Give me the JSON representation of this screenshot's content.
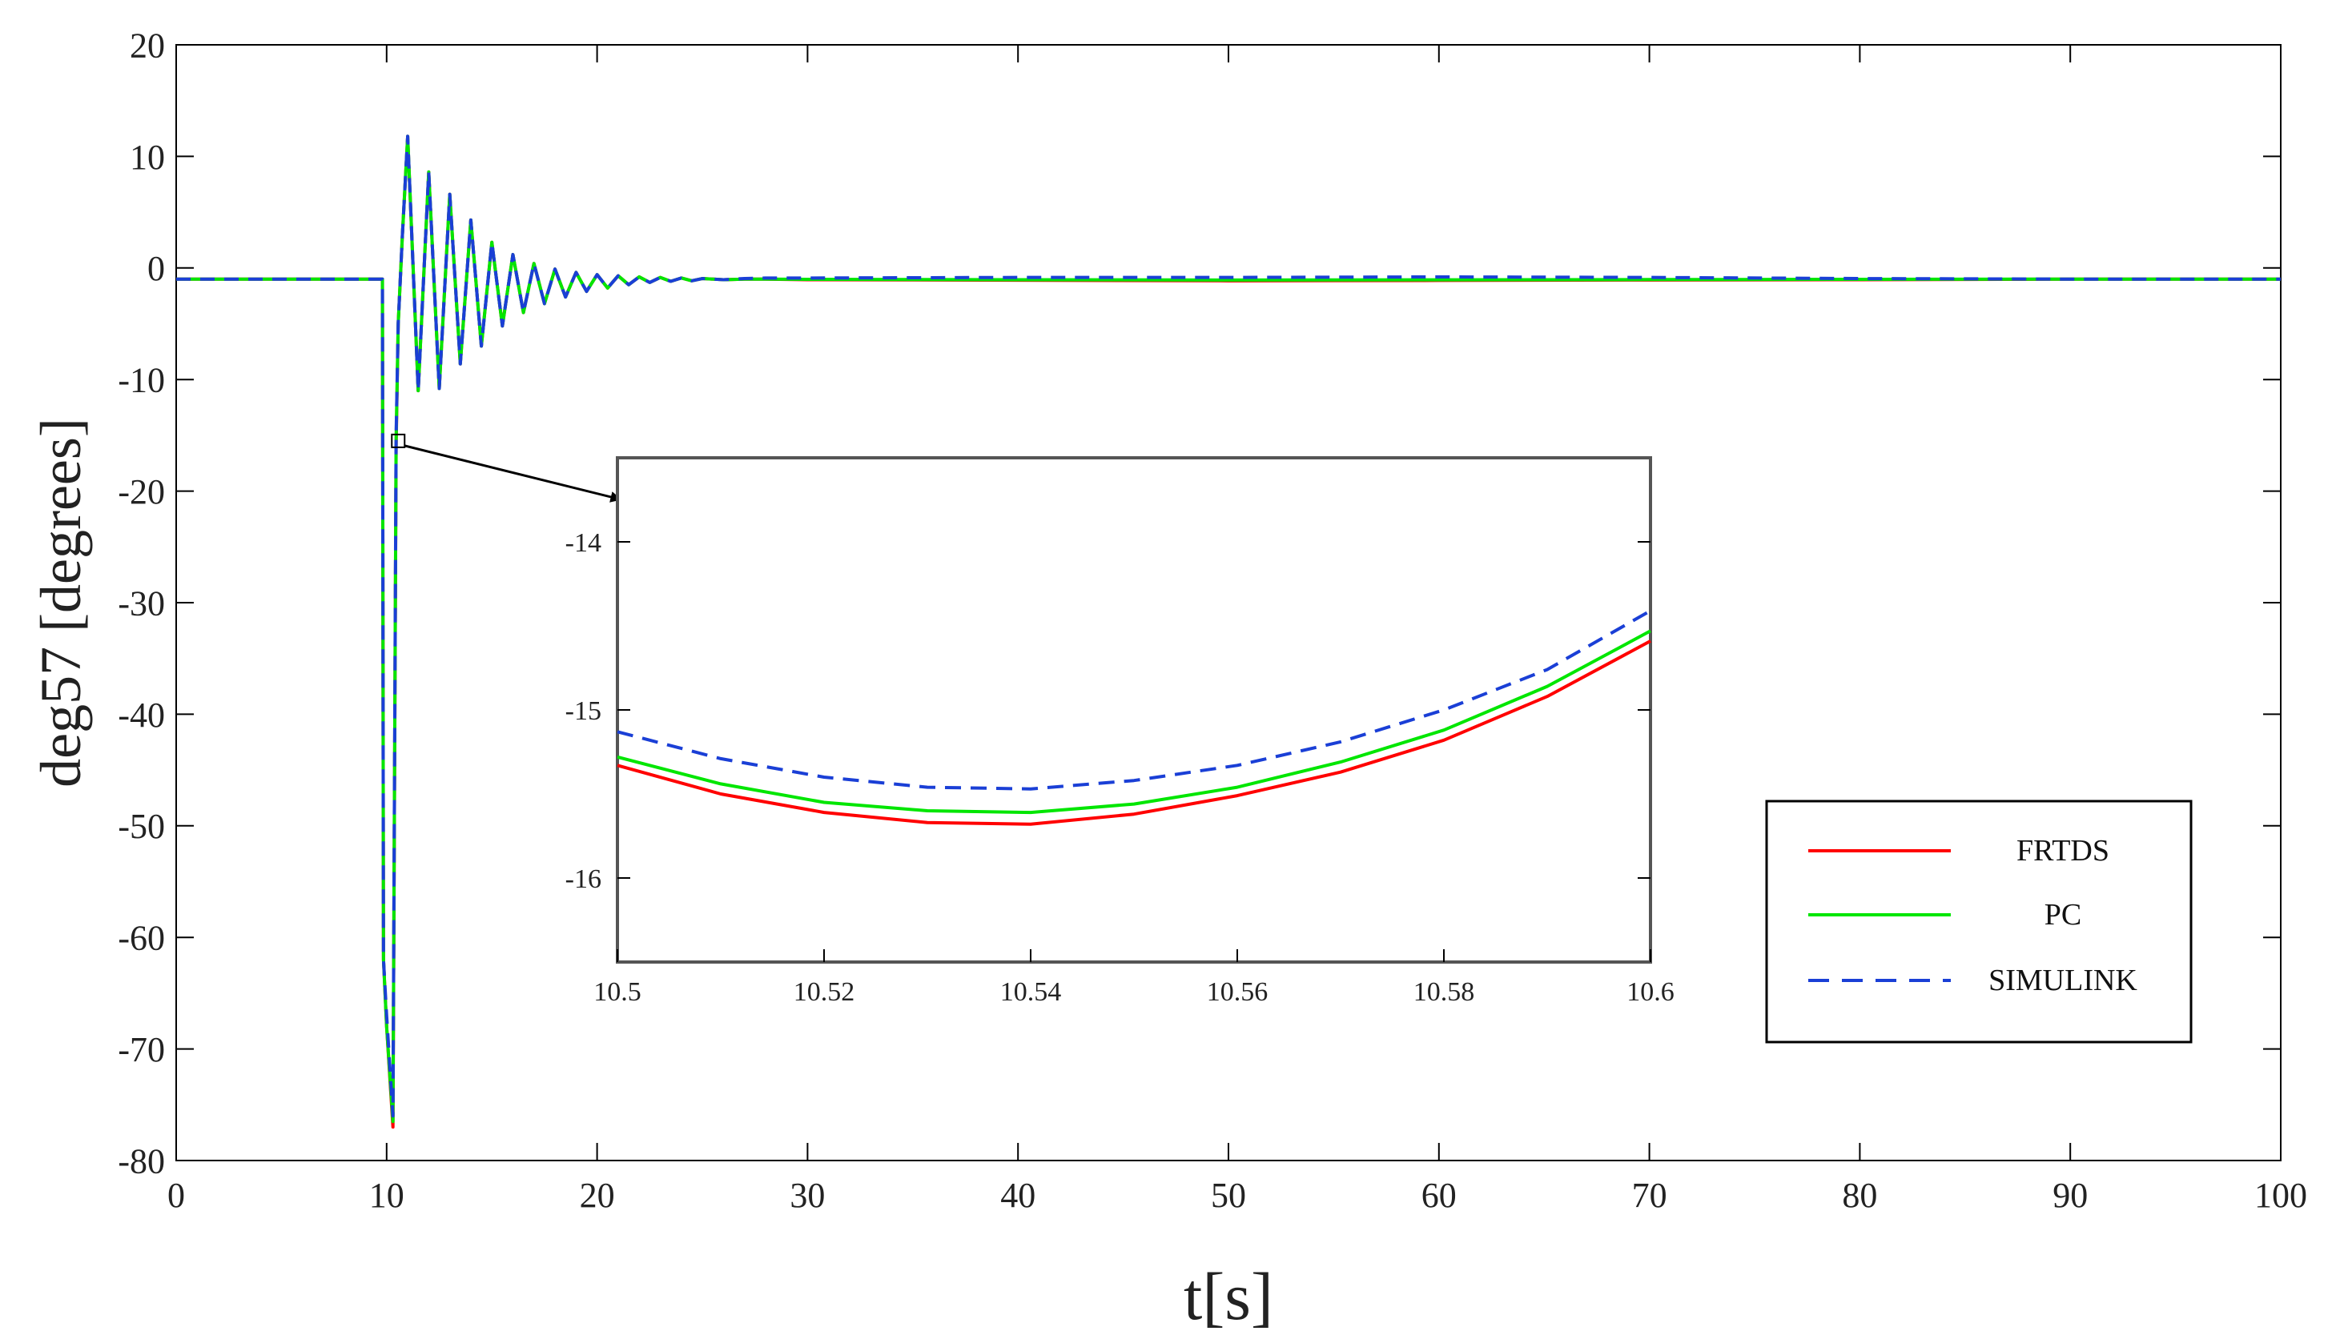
{
  "chart_data": [
    {
      "id": "main",
      "type": "line",
      "title": "",
      "xlabel": "t[s]",
      "ylabel": "deg57 [degrees]",
      "xlim": [
        0,
        100
      ],
      "ylim": [
        -80,
        20
      ],
      "xticks": [
        0,
        10,
        20,
        30,
        40,
        50,
        60,
        70,
        80,
        90,
        100
      ],
      "yticks": [
        20,
        10,
        0,
        -10,
        -20,
        -30,
        -40,
        -50,
        -60,
        -70,
        -80
      ],
      "grid": false,
      "series": [
        {
          "name": "FRTDS",
          "color": "#ff0000",
          "style": "solid",
          "x": [
            0,
            9.8,
            9.85,
            10.0,
            10.3,
            10.45,
            10.55,
            10.75,
            11.0,
            11.5,
            12.0,
            12.5,
            13.0,
            13.5,
            14.0,
            14.5,
            15.0,
            15.5,
            16.0,
            16.5,
            17.0,
            17.5,
            18.0,
            18.5,
            19.0,
            19.5,
            20.0,
            20.5,
            21.0,
            21.5,
            22.0,
            22.5,
            23.0,
            23.5,
            24.0,
            24.5,
            25.0,
            26.0,
            27.0,
            28.0,
            30.0,
            40.0,
            50.0,
            60.0,
            70.0,
            80.0,
            90.0,
            100.0
          ],
          "y": [
            -1,
            -1,
            -62,
            -68,
            -77,
            -16,
            -5,
            3,
            11.8,
            -11,
            8.6,
            -10.8,
            6.6,
            -8.6,
            4.3,
            -7.0,
            2.3,
            -5.2,
            1.2,
            -4.0,
            0.4,
            -3.2,
            -0.1,
            -2.6,
            -0.4,
            -2.1,
            -0.6,
            -1.8,
            -0.7,
            -1.5,
            -0.8,
            -1.3,
            -0.85,
            -1.2,
            -0.9,
            -1.15,
            -0.95,
            -1.05,
            -1.0,
            -1.0,
            -1.05,
            -1.1,
            -1.15,
            -1.12,
            -1.08,
            -1.05,
            -1.0,
            -1.0
          ]
        },
        {
          "name": "PC",
          "color": "#00e600",
          "style": "solid",
          "x": [
            0,
            9.8,
            9.85,
            10.0,
            10.3,
            10.45,
            10.55,
            10.75,
            11.0,
            11.5,
            12.0,
            12.5,
            13.0,
            13.5,
            14.0,
            14.5,
            15.0,
            15.5,
            16.0,
            16.5,
            17.0,
            17.5,
            18.0,
            18.5,
            19.0,
            19.5,
            20.0,
            20.5,
            21.0,
            21.5,
            22.0,
            22.5,
            23.0,
            23.5,
            24.0,
            24.5,
            25.0,
            26.0,
            27.0,
            28.0,
            30.0,
            40.0,
            50.0,
            60.0,
            70.0,
            80.0,
            90.0,
            100.0
          ],
          "y": [
            -1,
            -1,
            -62,
            -68,
            -76.5,
            -15.5,
            -5,
            3,
            11.8,
            -11,
            8.6,
            -10.8,
            6.6,
            -8.6,
            4.3,
            -7.0,
            2.3,
            -5.2,
            1.2,
            -4.0,
            0.4,
            -3.2,
            -0.1,
            -2.6,
            -0.4,
            -2.1,
            -0.6,
            -1.8,
            -0.7,
            -1.5,
            -0.8,
            -1.3,
            -0.85,
            -1.2,
            -0.9,
            -1.15,
            -0.95,
            -1.05,
            -1.0,
            -1.0,
            -1.02,
            -1.05,
            -1.08,
            -1.06,
            -1.04,
            -1.02,
            -1.0,
            -1.0
          ]
        },
        {
          "name": "SIMULINK",
          "color": "#1a3fd6",
          "style": "dashed",
          "x": [
            0,
            9.8,
            9.85,
            10.0,
            10.3,
            10.45,
            10.55,
            10.75,
            11.0,
            11.5,
            12.0,
            12.5,
            13.0,
            13.5,
            14.0,
            14.5,
            15.0,
            15.5,
            16.0,
            16.5,
            17.0,
            17.5,
            18.0,
            18.5,
            19.0,
            19.5,
            20.0,
            20.5,
            21.0,
            21.5,
            22.0,
            22.5,
            23.0,
            23.5,
            24.0,
            24.5,
            25.0,
            26.0,
            27.0,
            28.0,
            30.0,
            40.0,
            50.0,
            60.0,
            70.0,
            80.0,
            90.0,
            100.0
          ],
          "y": [
            -1,
            -1,
            -62,
            -67,
            -76,
            -15,
            -5,
            3,
            11.8,
            -11,
            8.6,
            -10.8,
            6.6,
            -8.6,
            4.3,
            -7.0,
            2.3,
            -5.2,
            1.2,
            -4.0,
            0.4,
            -3.2,
            -0.1,
            -2.6,
            -0.4,
            -2.1,
            -0.6,
            -1.8,
            -0.7,
            -1.5,
            -0.8,
            -1.3,
            -0.85,
            -1.2,
            -0.9,
            -1.15,
            -0.95,
            -1.05,
            -0.95,
            -0.9,
            -0.9,
            -0.85,
            -0.85,
            -0.8,
            -0.85,
            -0.95,
            -1.0,
            -1.0
          ]
        }
      ]
    },
    {
      "id": "inset",
      "type": "line",
      "title": "",
      "xlabel": "",
      "ylabel": "",
      "xlim": [
        10.5,
        10.6
      ],
      "ylim": [
        -16.5,
        -13.5
      ],
      "xticks": [
        10.5,
        10.52,
        10.54,
        10.56,
        10.58,
        10.6
      ],
      "xtick_labels": [
        "10.5",
        "10.52",
        "10.54",
        "10.56",
        "10.58",
        "10.6"
      ],
      "yticks": [
        -14,
        -15,
        -16
      ],
      "grid": false,
      "series": [
        {
          "name": "FRTDS",
          "color": "#ff0000",
          "style": "solid",
          "x": [
            10.5,
            10.51,
            10.52,
            10.53,
            10.54,
            10.55,
            10.56,
            10.57,
            10.58,
            10.59,
            10.6
          ],
          "y": [
            -15.33,
            -15.5,
            -15.61,
            -15.67,
            -15.68,
            -15.62,
            -15.51,
            -15.37,
            -15.18,
            -14.92,
            -14.59
          ]
        },
        {
          "name": "PC",
          "color": "#00e600",
          "style": "solid",
          "x": [
            10.5,
            10.51,
            10.52,
            10.53,
            10.54,
            10.55,
            10.56,
            10.57,
            10.58,
            10.59,
            10.6
          ],
          "y": [
            -15.28,
            -15.44,
            -15.55,
            -15.6,
            -15.61,
            -15.56,
            -15.46,
            -15.31,
            -15.12,
            -14.86,
            -14.53
          ]
        },
        {
          "name": "SIMULINK",
          "color": "#1a3fd6",
          "style": "dashed",
          "x": [
            10.5,
            10.51,
            10.52,
            10.53,
            10.54,
            10.55,
            10.56,
            10.57,
            10.58,
            10.59,
            10.6
          ],
          "y": [
            -15.13,
            -15.29,
            -15.4,
            -15.46,
            -15.47,
            -15.42,
            -15.33,
            -15.19,
            -15.0,
            -14.76,
            -14.41
          ]
        }
      ]
    }
  ],
  "legend": {
    "placement": "lower-right",
    "entries": [
      {
        "label": "FRTDS",
        "color": "#ff0000",
        "style": "solid"
      },
      {
        "label": "PC",
        "color": "#00e600",
        "style": "solid"
      },
      {
        "label": "SIMULINK",
        "color": "#1a3fd6",
        "style": "dashed"
      }
    ]
  },
  "zoom_marker": {
    "t": 10.55,
    "value": -15.5
  }
}
